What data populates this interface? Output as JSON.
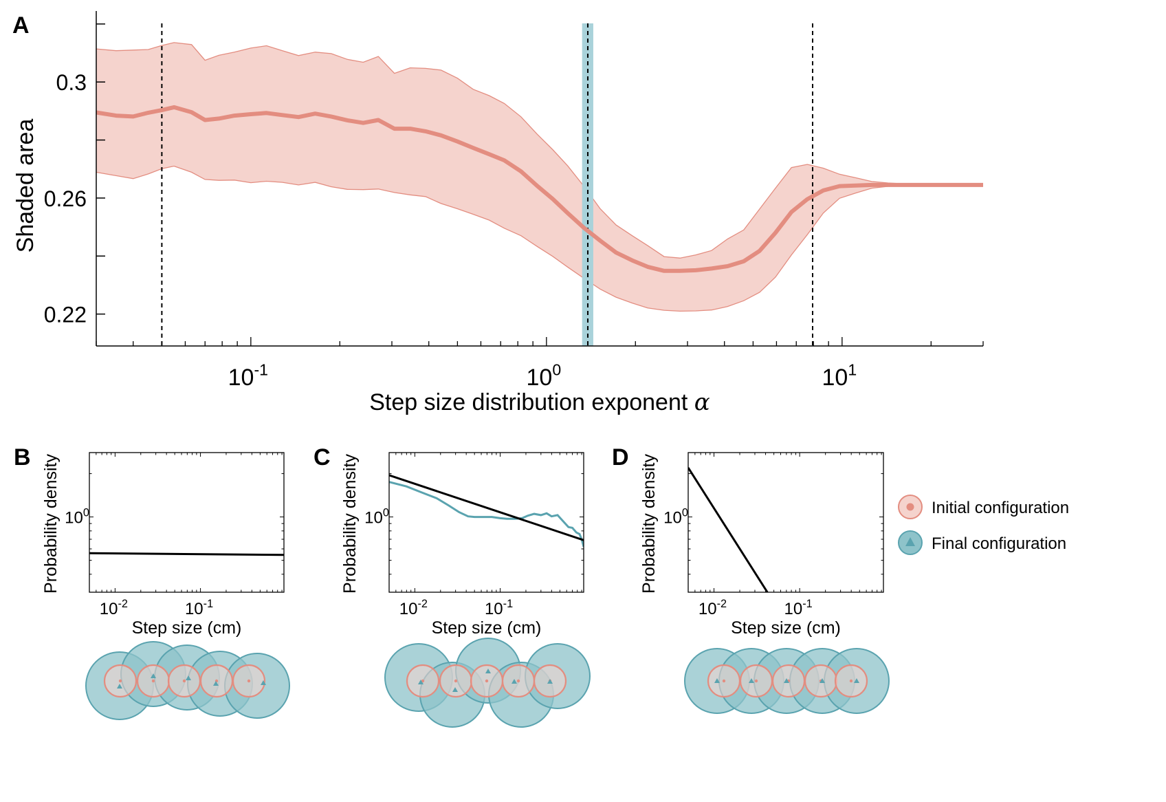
{
  "colors": {
    "red": "#e38d80",
    "red_fill": "#f5d3cd",
    "red_circle_stroke": "#e38d80",
    "teal": "#5aa3af",
    "teal_fill": "#8ec3ca",
    "teal_band": "#a9d2da",
    "axis": "#000000"
  },
  "panel_labels": {
    "a": "A",
    "b": "B",
    "c": "C",
    "d": "D"
  },
  "chart_data": [
    {
      "panel": "A",
      "type": "line",
      "xscale": "log",
      "xlim": [
        0.03,
        30
      ],
      "ylim": [
        0.209,
        0.324
      ],
      "ylabel": "Shaded area",
      "xlabel": "Step size distribution exponent ",
      "xlabel_symbol": "α",
      "yticks": [
        0.22,
        0.26,
        0.3
      ],
      "yticklabels": [
        "0.22",
        "0.26",
        "0.3"
      ],
      "yminor": [
        0.24,
        0.28,
        0.32
      ],
      "xticks": [
        {
          "base": "10",
          "exp": "-1",
          "value": 0.1
        },
        {
          "base": "10",
          "exp": "0",
          "value": 1
        },
        {
          "base": "10",
          "exp": "1",
          "value": 10
        }
      ],
      "vlines_dashed": [
        0.05,
        1.38,
        7.95
      ],
      "highlight_band": [
        1.32,
        1.44
      ],
      "series": {
        "name": "mean",
        "x": [
          0.03,
          0.035,
          0.04,
          0.045,
          0.05,
          0.055,
          0.063,
          0.07,
          0.078,
          0.088,
          0.1,
          0.113,
          0.128,
          0.145,
          0.165,
          0.187,
          0.212,
          0.24,
          0.27,
          0.306,
          0.346,
          0.39,
          0.44,
          0.5,
          0.565,
          0.64,
          0.72,
          0.82,
          0.93,
          1.05,
          1.18,
          1.34,
          1.52,
          1.72,
          1.95,
          2.2,
          2.5,
          2.83,
          3.2,
          3.62,
          4.1,
          4.65,
          5.26,
          5.95,
          6.74,
          7.63,
          8.64,
          9.8,
          11.1,
          12.6,
          14.3,
          17,
          20,
          24,
          30
        ],
        "y": [
          0.2895,
          0.2884,
          0.2881,
          0.2894,
          0.2903,
          0.2913,
          0.2896,
          0.2869,
          0.2874,
          0.2884,
          0.2889,
          0.2893,
          0.2886,
          0.2879,
          0.2891,
          0.2881,
          0.2868,
          0.2859,
          0.2869,
          0.2839,
          0.2839,
          0.283,
          0.2816,
          0.2795,
          0.2773,
          0.2751,
          0.273,
          0.2692,
          0.2642,
          0.2597,
          0.2548,
          0.2497,
          0.2453,
          0.2412,
          0.2385,
          0.2363,
          0.2349,
          0.2349,
          0.2351,
          0.2357,
          0.2365,
          0.2382,
          0.2418,
          0.248,
          0.2552,
          0.2596,
          0.2626,
          0.2641,
          0.2643,
          0.2645,
          0.2645,
          0.2645,
          0.2645,
          0.2645,
          0.2645
        ],
        "upper": [
          0.3114,
          0.3108,
          0.311,
          0.3112,
          0.3126,
          0.3136,
          0.3129,
          0.3075,
          0.3092,
          0.3103,
          0.3117,
          0.3125,
          0.3108,
          0.3091,
          0.3103,
          0.3098,
          0.3078,
          0.3068,
          0.3088,
          0.303,
          0.3049,
          0.3047,
          0.3041,
          0.3013,
          0.2975,
          0.2953,
          0.2926,
          0.288,
          0.282,
          0.2767,
          0.2711,
          0.264,
          0.2563,
          0.2507,
          0.247,
          0.2436,
          0.2398,
          0.2393,
          0.2404,
          0.2419,
          0.2459,
          0.249,
          0.2562,
          0.2634,
          0.2705,
          0.2716,
          0.2703,
          0.2682,
          0.267,
          0.2657,
          0.2652,
          0.2648,
          0.2646,
          0.2646,
          0.2646
        ],
        "lower": [
          0.2689,
          0.2677,
          0.2667,
          0.2683,
          0.2701,
          0.271,
          0.2689,
          0.2664,
          0.2661,
          0.2662,
          0.2653,
          0.2658,
          0.2654,
          0.2645,
          0.2654,
          0.2639,
          0.263,
          0.2629,
          0.2631,
          0.2619,
          0.2611,
          0.2605,
          0.2581,
          0.2563,
          0.2544,
          0.2524,
          0.2496,
          0.247,
          0.2433,
          0.2399,
          0.2362,
          0.2323,
          0.2286,
          0.2258,
          0.2238,
          0.2221,
          0.2213,
          0.221,
          0.2211,
          0.2214,
          0.2226,
          0.2246,
          0.2275,
          0.2327,
          0.2404,
          0.2474,
          0.2548,
          0.2599,
          0.2617,
          0.2634,
          0.264,
          0.2643,
          0.2644,
          0.2644,
          0.2644
        ]
      }
    },
    {
      "panel": "B",
      "type": "line",
      "xscale": "log",
      "yscale": "log",
      "xlim": [
        0.005,
        0.95
      ],
      "ylim": [
        0.3,
        2.8
      ],
      "xlabel": "Step size (cm)",
      "ylabel": "Probability density",
      "xticks": [
        {
          "base": "10",
          "exp": "-2",
          "value": 0.01
        },
        {
          "base": "10",
          "exp": "-1",
          "value": 0.1
        }
      ],
      "yticks": [
        {
          "base": "10",
          "exp": "0",
          "value": 1
        }
      ],
      "power_law": {
        "x": [
          0.005,
          0.95
        ],
        "y": [
          0.56,
          0.545
        ]
      },
      "empirical": null
    },
    {
      "panel": "C",
      "type": "line",
      "xscale": "log",
      "yscale": "log",
      "xlim": [
        0.005,
        0.95
      ],
      "ylim": [
        0.3,
        2.8
      ],
      "xlabel": "Step size (cm)",
      "ylabel": "Probability density",
      "xticks": [
        {
          "base": "10",
          "exp": "-2",
          "value": 0.01
        },
        {
          "base": "10",
          "exp": "-1",
          "value": 0.1
        }
      ],
      "yticks": [
        {
          "base": "10",
          "exp": "0",
          "value": 1
        }
      ],
      "power_law": {
        "x": [
          0.005,
          0.95
        ],
        "y": [
          1.95,
          0.69
        ]
      },
      "empirical": {
        "x": [
          0.005,
          0.008,
          0.012,
          0.018,
          0.025,
          0.033,
          0.042,
          0.05,
          0.065,
          0.08,
          0.1,
          0.12,
          0.15,
          0.18,
          0.21,
          0.25,
          0.3,
          0.35,
          0.4,
          0.47,
          0.55,
          0.63,
          0.7,
          0.78,
          0.85,
          0.9,
          0.95
        ],
        "y": [
          1.75,
          1.63,
          1.48,
          1.35,
          1.2,
          1.08,
          1.01,
          1.0,
          1.0,
          1.0,
          0.98,
          0.97,
          0.97,
          0.98,
          1.02,
          1.05,
          1.03,
          1.06,
          1.01,
          1.03,
          0.93,
          0.85,
          0.84,
          0.78,
          0.76,
          0.7,
          0.62
        ]
      }
    },
    {
      "panel": "D",
      "type": "line",
      "xscale": "log",
      "yscale": "log",
      "xlim": [
        0.005,
        0.95
      ],
      "ylim": [
        0.3,
        2.8
      ],
      "xlabel": "Step size (cm)",
      "ylabel": "Probability density",
      "xticks": [
        {
          "base": "10",
          "exp": "-2",
          "value": 0.01
        },
        {
          "base": "10",
          "exp": "-1",
          "value": 0.1
        }
      ],
      "yticks": [
        {
          "base": "10",
          "exp": "0",
          "value": 1
        }
      ],
      "power_law": {
        "x": [
          0.005,
          0.042
        ],
        "y": [
          2.2,
          0.3
        ]
      },
      "empirical": null
    }
  ],
  "legend": {
    "items": [
      {
        "label": "Initial configuration",
        "marker": "circle"
      },
      {
        "label": "Final configuration",
        "marker": "triangle"
      }
    ]
  }
}
